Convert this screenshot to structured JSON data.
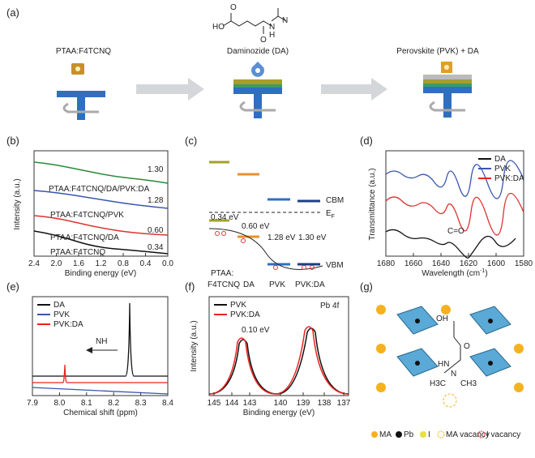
{
  "panels": {
    "a": {
      "label": "(a)",
      "step1": "PTAA:F4TCNQ",
      "molecule": "Daminozide (DA)",
      "atoms": [
        "O",
        "HO",
        "O",
        "N",
        "H",
        "N"
      ],
      "step3": "Perovskite (PVK) + DA"
    },
    "b": {
      "label": "(b)",
      "y_label": "Intensity (a.u.)",
      "x_label": "Binding energy (eV)",
      "x_ticks": [
        "2.4",
        "2.0",
        "1.6",
        "1.2",
        "0.8",
        "0.4",
        "0.0"
      ],
      "curves": [
        {
          "name": "PTAA:F4TCNQ/DA/PVK:DA",
          "value": "1.30"
        },
        {
          "name": "PTAA:F4TCNQ/PVK",
          "value": "1.28"
        },
        {
          "name": "PTAA:F4TCNQ/DA",
          "value": "0.60"
        },
        {
          "name": "PTAA:F4TCNQ",
          "value": "0.34"
        }
      ]
    },
    "c": {
      "label": "(c)",
      "cbm": "CBM",
      "ef": "E",
      "ef_sub": "F",
      "vbm": "VBM",
      "gaps": [
        "0.34 eV",
        "0.60 eV",
        "1.28 eV",
        "1.30 eV"
      ],
      "materials": [
        "PTAA:",
        "F4TCNQ",
        "DA",
        "PVK",
        "PVK:DA"
      ]
    },
    "d": {
      "label": "(d)",
      "y_label": "Transmittance (a.u.)",
      "x_label": "Wavelength (cm",
      "x_label_sup": "-1",
      "x_label_end": ")",
      "x_ticks": [
        "1680",
        "1660",
        "1640",
        "1620",
        "1600",
        "1580"
      ],
      "legend": [
        "DA",
        "PVK",
        "PVK:DA"
      ],
      "annotation": "C=O"
    },
    "e": {
      "label": "(e)",
      "x_label": "Chemical shift (ppm)",
      "x_ticks": [
        "7.9",
        "8.0",
        "8.1",
        "8.2",
        "8.3",
        "8.4"
      ],
      "legend": [
        "DA",
        "PVK",
        "PVK:DA"
      ],
      "annotation": "NH"
    },
    "f": {
      "label": "(f)",
      "y_label": "Intensity (a.u.)",
      "x_label": "Binding energy (eV)",
      "x_ticks": [
        "145",
        "144",
        "143",
        "140",
        "139",
        "138",
        "137"
      ],
      "legend": [
        "PVK",
        "PVK:DA"
      ],
      "annotation": "Pb 4f",
      "shift": "0.10 eV"
    },
    "g": {
      "label": "(g)",
      "atoms": [
        "OH",
        "O",
        "HN",
        "N",
        "H3C",
        "CH3"
      ],
      "legend": [
        "MA",
        "Pb",
        "I",
        "MA vacancy",
        "I vacancy"
      ]
    }
  }
}
